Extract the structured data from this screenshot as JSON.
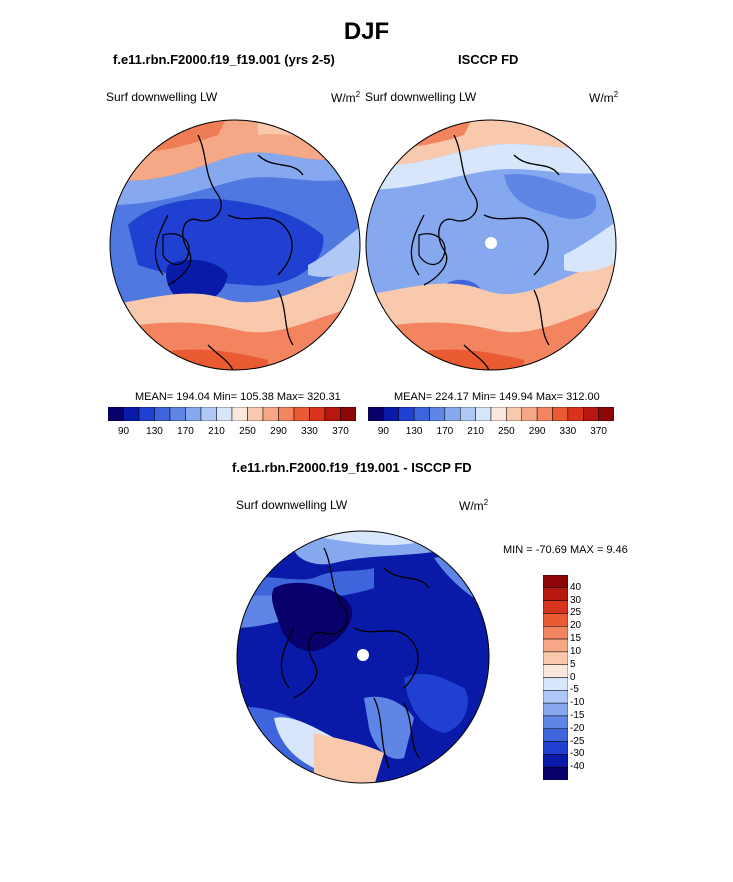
{
  "figure_title": "DJF",
  "panels": {
    "top_left": {
      "title": "f.e11.rbn.F2000.f19_f19.001 (yrs 2-5)",
      "left_label": "Surf downwelling LW",
      "units": "W/m",
      "units_sup": "2",
      "stats": "MEAN= 194.04  Min= 105.38  Max= 320.31"
    },
    "top_right": {
      "title": "ISCCP FD",
      "left_label": "Surf downwelling LW",
      "units": "W/m",
      "units_sup": "2",
      "stats": "MEAN= 224.17  Min= 149.94  Max= 312.00"
    },
    "bottom": {
      "title": "f.e11.rbn.F2000.f19_f19.001 - ISCCP FD",
      "left_label": "Surf downwelling LW",
      "units": "W/m",
      "units_sup": "2",
      "minmax": "MIN = -70.69 MAX =   9.46"
    }
  },
  "colorbar_top": {
    "colors": [
      "#08006b",
      "#0a1aa8",
      "#1f40d0",
      "#3f65dc",
      "#5f86e6",
      "#86a8ee",
      "#afc8f5",
      "#d8e6fb",
      "#fae8dc",
      "#f9c9ae",
      "#f6a785",
      "#f2845f",
      "#ea5a33",
      "#d8341c",
      "#b8170f",
      "#8c0705"
    ],
    "labels": [
      "90",
      "130",
      "170",
      "210",
      "250",
      "290",
      "330",
      "370"
    ]
  },
  "colorbar_diff": {
    "colors": [
      "#08006b",
      "#0a1aa8",
      "#1f40d0",
      "#3f65dc",
      "#5f86e6",
      "#86a8ee",
      "#afc8f5",
      "#d8e6fb",
      "#fae8dc",
      "#f9c9ae",
      "#f6a785",
      "#f2845f",
      "#ea5a33",
      "#d8341c",
      "#b8170f",
      "#8c0705"
    ],
    "labels": [
      "40",
      "30",
      "25",
      "20",
      "15",
      "10",
      "5",
      "0",
      "-5",
      "-10",
      "-15",
      "-20",
      "-25",
      "-30",
      "-40"
    ]
  }
}
